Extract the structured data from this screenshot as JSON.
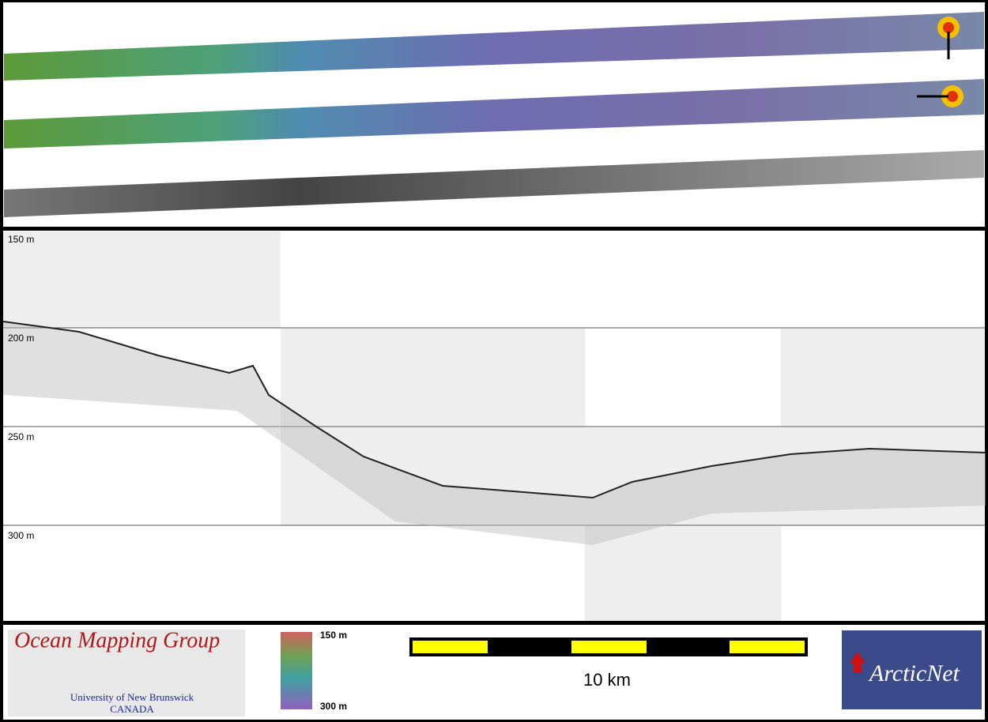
{
  "profile": {
    "depth_labels": [
      "150 m",
      "200 m",
      "250 m",
      "300 m"
    ]
  },
  "logo_left": {
    "title": "Ocean Mapping Group",
    "subtitle": "University of New Brunswick",
    "country": "CANADA"
  },
  "colorbar": {
    "top_label": "150 m",
    "bottom_label": "300 m"
  },
  "scale_bar": {
    "label": "10 km"
  },
  "logo_right": {
    "title": "ArcticNet"
  }
}
